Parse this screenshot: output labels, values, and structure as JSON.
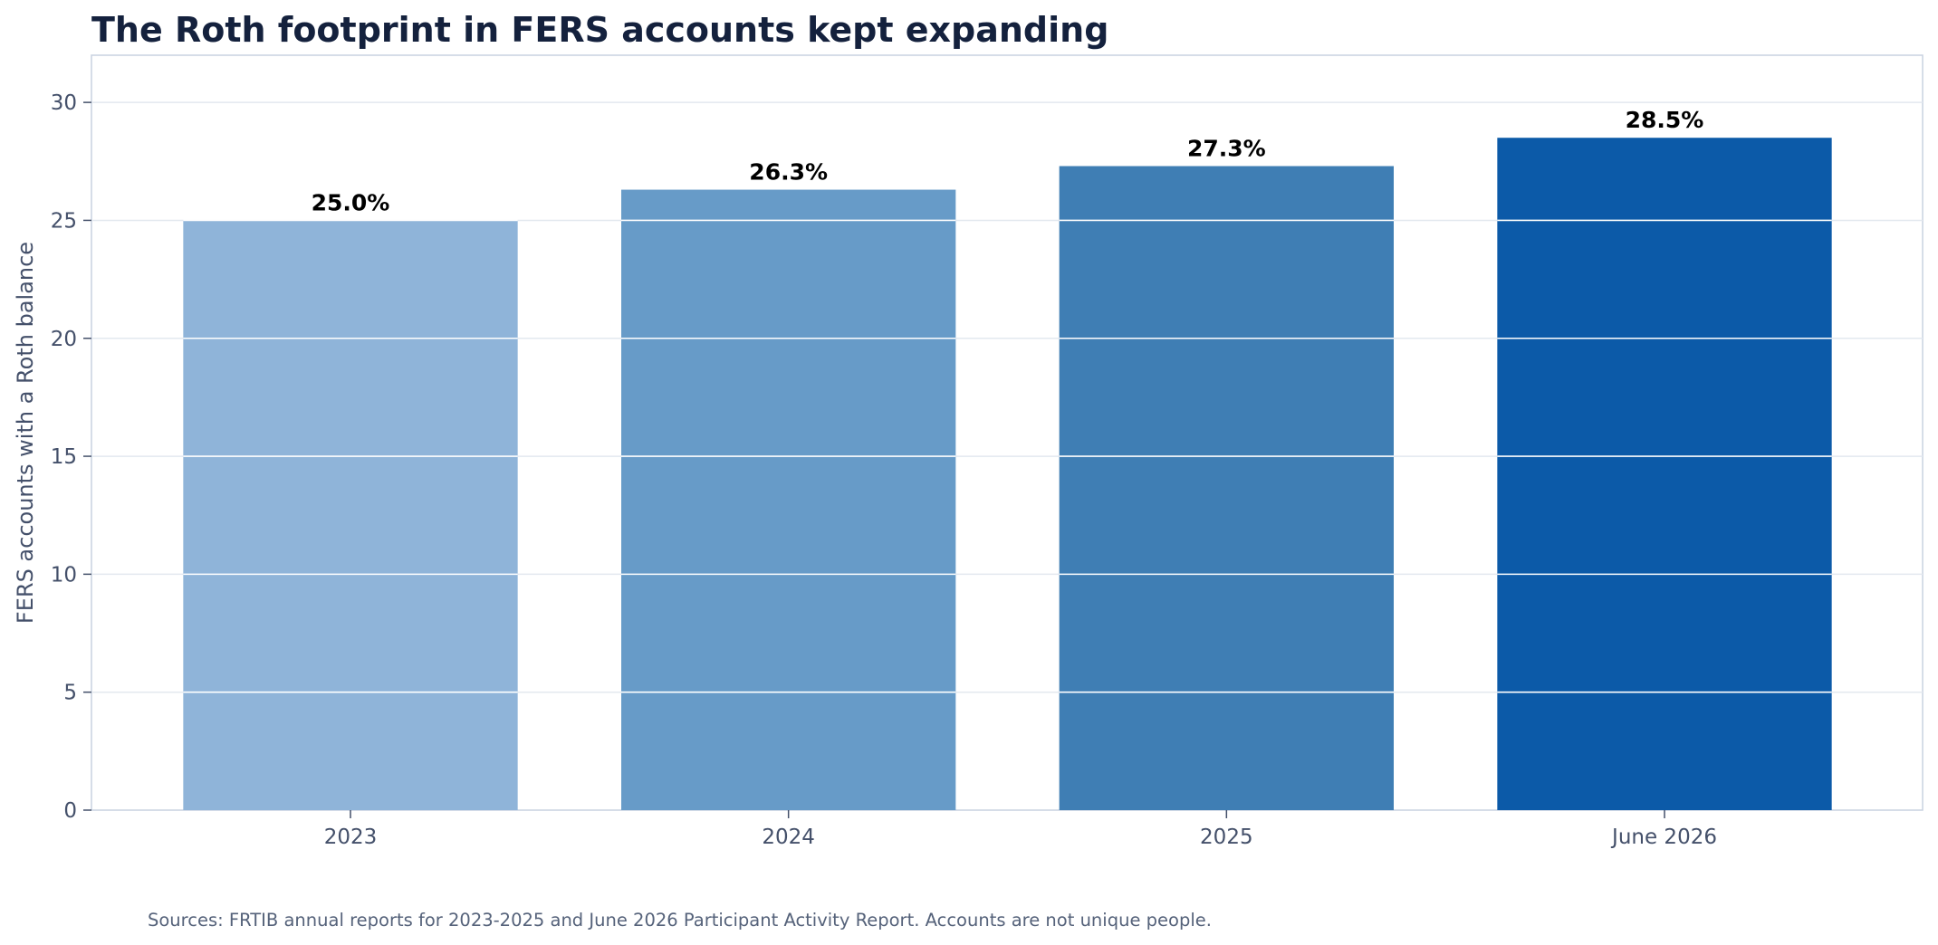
{
  "chart_data": {
    "type": "bar",
    "title": "The Roth footprint in FERS accounts kept expanding",
    "xlabel": "",
    "ylabel": "FERS accounts with a Roth balance",
    "categories": [
      "2023",
      "2024",
      "2025",
      "June 2026"
    ],
    "values": [
      25.0,
      26.3,
      27.3,
      28.5
    ],
    "value_labels": [
      "25.0%",
      "26.3%",
      "27.3%",
      "28.5%"
    ],
    "bar_colors": [
      "#8fb4d9",
      "#679bc8",
      "#3f7eb4",
      "#0c5aa8"
    ],
    "ylim": [
      0,
      32
    ],
    "yticks": [
      0,
      5,
      10,
      15,
      20,
      25,
      30
    ],
    "grid": true,
    "legend": "none"
  },
  "footer": {
    "source": "Sources: FRTIB annual reports for 2023-2025 and June 2026 Participant Activity Report. Accounts are not unique people."
  }
}
